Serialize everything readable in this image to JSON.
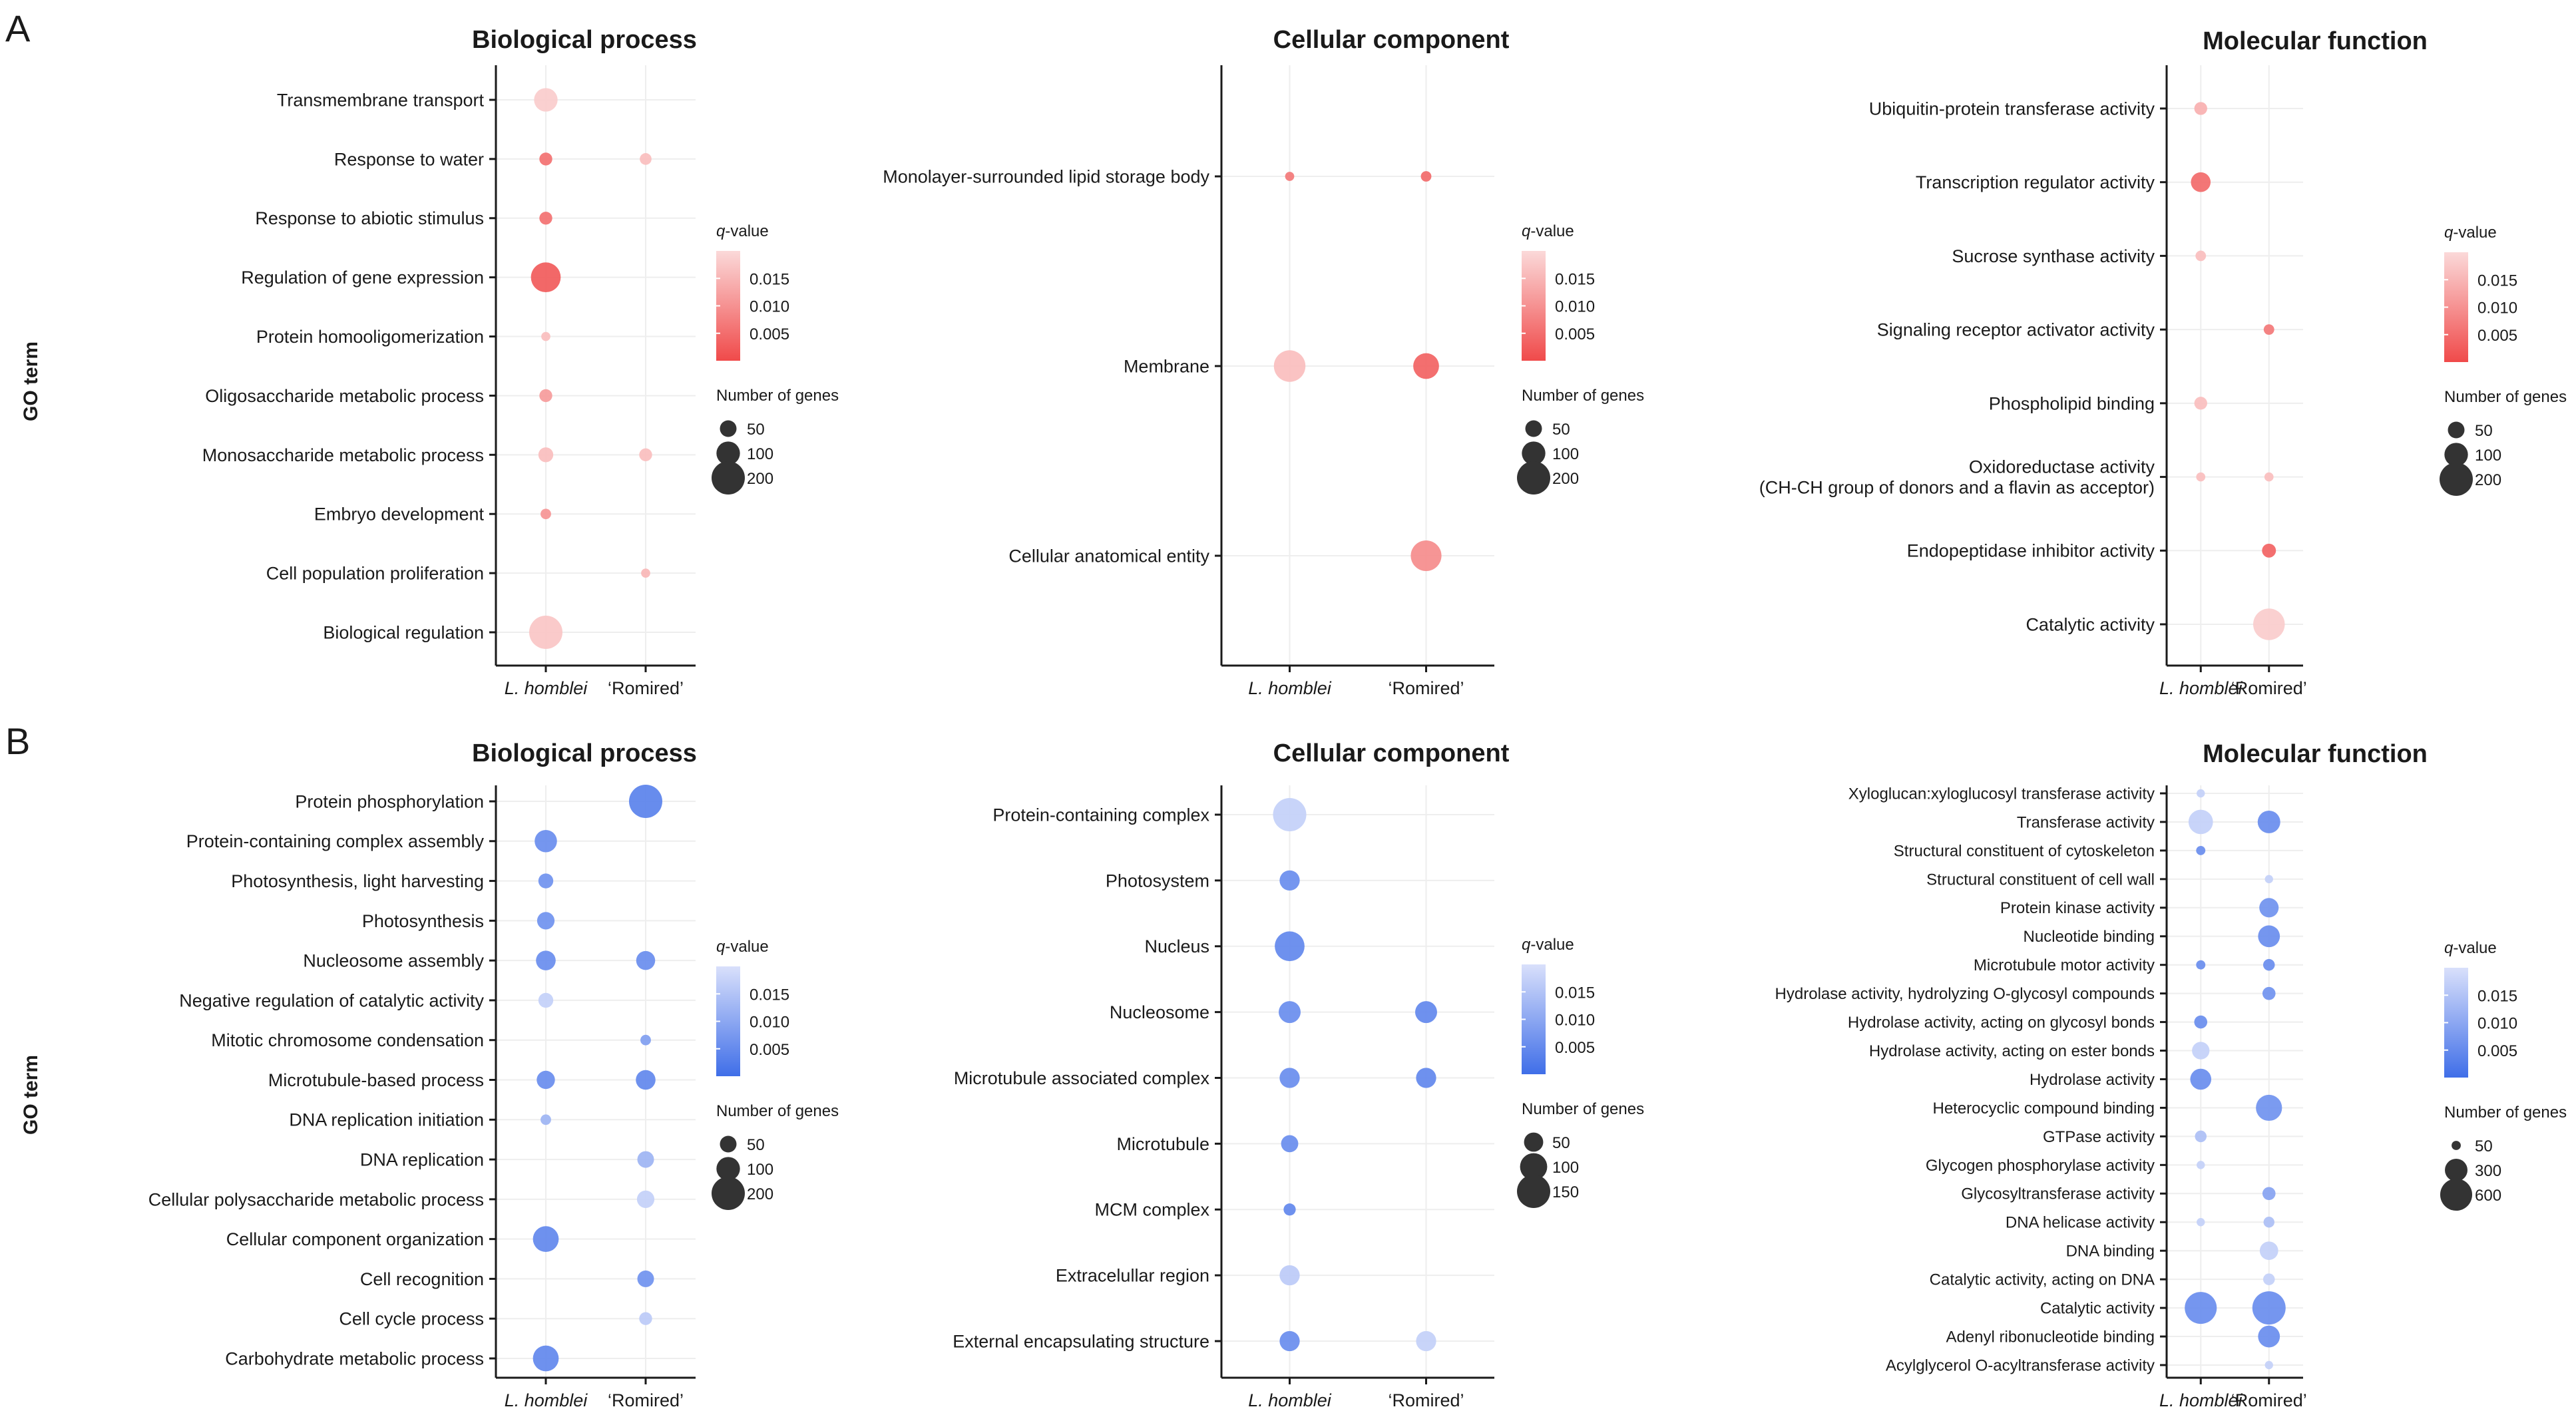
{
  "figure": {
    "y_axis_label": "GO term",
    "legend_q_label": "q-value",
    "legend_q_ticks": [
      "0.015",
      "0.010",
      "0.005"
    ],
    "legend_size_title": "Number of genes",
    "x_categories": [
      "L. homblei",
      "'Romired'"
    ],
    "colors": {
      "A_strong": "#f04a4a",
      "A_weak": "#fbd9d9",
      "B_strong": "#3f6ee8",
      "B_weak": "#d9e0fb",
      "axis": "#1a1a1a",
      "grid": "#eeeeee"
    }
  },
  "chart_data": [
    {
      "panel": "A",
      "type": "scatter",
      "title": "Biological process",
      "q_range": [
        0,
        0.02
      ],
      "size_legend": [
        50,
        100,
        200
      ],
      "terms": [
        "Transmembrane transport",
        "Response to water",
        "Response to abiotic stimulus",
        "Regulation of gene expression",
        "Protein homooligomerization",
        "Oligosaccharide metabolic process",
        "Monosaccharide metabolic process",
        "Embryo development",
        "Cell population proliferation",
        "Biological regulation"
      ],
      "points": [
        {
          "term": 0,
          "x": 0,
          "genes": 100,
          "q": 0.018
        },
        {
          "term": 1,
          "x": 0,
          "genes": 30,
          "q": 0.005
        },
        {
          "term": 1,
          "x": 1,
          "genes": 25,
          "q": 0.016
        },
        {
          "term": 2,
          "x": 0,
          "genes": 30,
          "q": 0.005
        },
        {
          "term": 3,
          "x": 0,
          "genes": 160,
          "q": 0.002
        },
        {
          "term": 4,
          "x": 0,
          "genes": 15,
          "q": 0.016
        },
        {
          "term": 5,
          "x": 0,
          "genes": 30,
          "q": 0.011
        },
        {
          "term": 6,
          "x": 0,
          "genes": 40,
          "q": 0.016
        },
        {
          "term": 6,
          "x": 1,
          "genes": 30,
          "q": 0.016
        },
        {
          "term": 7,
          "x": 0,
          "genes": 20,
          "q": 0.01
        },
        {
          "term": 8,
          "x": 1,
          "genes": 15,
          "q": 0.015
        },
        {
          "term": 9,
          "x": 0,
          "genes": 200,
          "q": 0.017
        }
      ]
    },
    {
      "panel": "A",
      "type": "scatter",
      "title": "Cellular component",
      "q_range": [
        0,
        0.02
      ],
      "size_legend": [
        50,
        100,
        200
      ],
      "terms": [
        "Monolayer-surrounded lipid storage body",
        "Membrane",
        "Cellular anatomical entity"
      ],
      "points": [
        {
          "term": 0,
          "x": 0,
          "genes": 15,
          "q": 0.006
        },
        {
          "term": 0,
          "x": 1,
          "genes": 20,
          "q": 0.004
        },
        {
          "term": 1,
          "x": 0,
          "genes": 180,
          "q": 0.016
        },
        {
          "term": 1,
          "x": 1,
          "genes": 120,
          "q": 0.003
        },
        {
          "term": 2,
          "x": 1,
          "genes": 170,
          "q": 0.009
        }
      ]
    },
    {
      "panel": "A",
      "type": "scatter",
      "title": "Molecular function",
      "q_range": [
        0,
        0.02
      ],
      "size_legend": [
        50,
        100,
        200
      ],
      "terms": [
        "Ubiquitin-protein transferase activity",
        "Transcription regulator activity",
        "Sucrose synthase activity",
        "Signaling receptor activator activity",
        "Phospholipid binding",
        "Oxidoreductase activity\n(CH-CH group of donors and a flavin as acceptor)",
        "Endopeptidase inhibitor activity",
        "Catalytic activity"
      ],
      "points": [
        {
          "term": 0,
          "x": 0,
          "genes": 30,
          "q": 0.014
        },
        {
          "term": 1,
          "x": 0,
          "genes": 70,
          "q": 0.004
        },
        {
          "term": 2,
          "x": 0,
          "genes": 20,
          "q": 0.016
        },
        {
          "term": 3,
          "x": 1,
          "genes": 20,
          "q": 0.006
        },
        {
          "term": 4,
          "x": 0,
          "genes": 30,
          "q": 0.016
        },
        {
          "term": 5,
          "x": 0,
          "genes": 15,
          "q": 0.016
        },
        {
          "term": 5,
          "x": 1,
          "genes": 15,
          "q": 0.016
        },
        {
          "term": 6,
          "x": 1,
          "genes": 35,
          "q": 0.003
        },
        {
          "term": 7,
          "x": 1,
          "genes": 180,
          "q": 0.018
        }
      ]
    },
    {
      "panel": "B",
      "type": "scatter",
      "title": "Biological process",
      "q_range": [
        0,
        0.02
      ],
      "size_legend": [
        50,
        100,
        200
      ],
      "terms": [
        "Protein phosphorylation",
        "Protein-containing complex assembly",
        "Photosynthesis, light harvesting",
        "Photosynthesis",
        "Nucleosome assembly",
        "Negative regulation of catalytic activity",
        "Mitotic chromosome condensation",
        "Microtubule-based process",
        "DNA replication initiation",
        "DNA replication",
        "Cellular polysaccharide metabolic process",
        "Cellular component organization",
        "Cell recognition",
        "Cell cycle process",
        "Carbohydrate metabolic process"
      ],
      "points": [
        {
          "term": 0,
          "x": 1,
          "genes": 200,
          "q": 0.003
        },
        {
          "term": 1,
          "x": 0,
          "genes": 90,
          "q": 0.005
        },
        {
          "term": 2,
          "x": 0,
          "genes": 40,
          "q": 0.006
        },
        {
          "term": 3,
          "x": 0,
          "genes": 55,
          "q": 0.006
        },
        {
          "term": 4,
          "x": 0,
          "genes": 70,
          "q": 0.005
        },
        {
          "term": 4,
          "x": 1,
          "genes": 65,
          "q": 0.005
        },
        {
          "term": 5,
          "x": 0,
          "genes": 40,
          "q": 0.017
        },
        {
          "term": 6,
          "x": 1,
          "genes": 20,
          "q": 0.008
        },
        {
          "term": 7,
          "x": 0,
          "genes": 60,
          "q": 0.005
        },
        {
          "term": 7,
          "x": 1,
          "genes": 70,
          "q": 0.004
        },
        {
          "term": 8,
          "x": 0,
          "genes": 20,
          "q": 0.012
        },
        {
          "term": 9,
          "x": 1,
          "genes": 50,
          "q": 0.012
        },
        {
          "term": 10,
          "x": 1,
          "genes": 55,
          "q": 0.017
        },
        {
          "term": 11,
          "x": 0,
          "genes": 120,
          "q": 0.004
        },
        {
          "term": 12,
          "x": 1,
          "genes": 50,
          "q": 0.006
        },
        {
          "term": 13,
          "x": 1,
          "genes": 30,
          "q": 0.016
        },
        {
          "term": 14,
          "x": 0,
          "genes": 120,
          "q": 0.004
        }
      ]
    },
    {
      "panel": "B",
      "type": "scatter",
      "title": "Cellular component",
      "q_range": [
        0,
        0.02
      ],
      "size_legend": [
        50,
        100,
        150
      ],
      "terms": [
        "Protein-containing complex",
        "Photosystem",
        "Nucleus",
        "Nucleosome",
        "Microtubule associated complex",
        "Microtubule",
        "MCM complex",
        "Extracelullar region",
        "External encapsulating structure"
      ],
      "points": [
        {
          "term": 0,
          "x": 0,
          "genes": 150,
          "q": 0.017
        },
        {
          "term": 1,
          "x": 0,
          "genes": 55,
          "q": 0.005
        },
        {
          "term": 2,
          "x": 0,
          "genes": 120,
          "q": 0.004
        },
        {
          "term": 3,
          "x": 0,
          "genes": 65,
          "q": 0.005
        },
        {
          "term": 3,
          "x": 1,
          "genes": 65,
          "q": 0.004
        },
        {
          "term": 4,
          "x": 0,
          "genes": 55,
          "q": 0.005
        },
        {
          "term": 4,
          "x": 1,
          "genes": 55,
          "q": 0.004
        },
        {
          "term": 5,
          "x": 0,
          "genes": 40,
          "q": 0.005
        },
        {
          "term": 6,
          "x": 0,
          "genes": 20,
          "q": 0.004
        },
        {
          "term": 7,
          "x": 0,
          "genes": 55,
          "q": 0.016
        },
        {
          "term": 8,
          "x": 0,
          "genes": 55,
          "q": 0.005
        },
        {
          "term": 8,
          "x": 1,
          "genes": 55,
          "q": 0.017
        }
      ]
    },
    {
      "panel": "B",
      "type": "scatter",
      "title": "Molecular function",
      "q_range": [
        0,
        0.02
      ],
      "size_legend": [
        50,
        300,
        600
      ],
      "terms": [
        "Xyloglucan:xyloglucosyl transferase activity",
        "Transferase activity",
        "Structural constituent of cytoskeleton",
        "Structural constituent of cell wall",
        "Protein kinase activity",
        "Nucleotide binding",
        "Microtubule motor activity",
        "Hydrolase activity, hydrolyzing O-glycosyl compounds",
        "Hydrolase activity, acting on glycosyl bonds",
        "Hydrolase activity, acting on ester bonds",
        "Hydrolase activity",
        "Heterocyclic compound binding",
        "GTPase activity",
        "Glycogen phosphorylase activity",
        "Glycosyltransferase activity",
        "DNA helicase activity",
        "DNA binding",
        "Catalytic activity, acting on DNA",
        "Catalytic activity",
        "Adenyl ribonucleotide binding",
        "Acylglycerol O-acyltransferase activity"
      ],
      "points": [
        {
          "term": 0,
          "x": 0,
          "genes": 40,
          "q": 0.017
        },
        {
          "term": 1,
          "x": 0,
          "genes": 350,
          "q": 0.017
        },
        {
          "term": 1,
          "x": 1,
          "genes": 300,
          "q": 0.005
        },
        {
          "term": 2,
          "x": 0,
          "genes": 50,
          "q": 0.005
        },
        {
          "term": 3,
          "x": 1,
          "genes": 40,
          "q": 0.017
        },
        {
          "term": 4,
          "x": 1,
          "genes": 220,
          "q": 0.006
        },
        {
          "term": 5,
          "x": 1,
          "genes": 280,
          "q": 0.005
        },
        {
          "term": 6,
          "x": 0,
          "genes": 50,
          "q": 0.005
        },
        {
          "term": 6,
          "x": 1,
          "genes": 80,
          "q": 0.005
        },
        {
          "term": 7,
          "x": 1,
          "genes": 100,
          "q": 0.006
        },
        {
          "term": 8,
          "x": 0,
          "genes": 100,
          "q": 0.005
        },
        {
          "term": 9,
          "x": 0,
          "genes": 180,
          "q": 0.017
        },
        {
          "term": 10,
          "x": 0,
          "genes": 260,
          "q": 0.005
        },
        {
          "term": 11,
          "x": 1,
          "genes": 400,
          "q": 0.006
        },
        {
          "term": 12,
          "x": 0,
          "genes": 80,
          "q": 0.014
        },
        {
          "term": 13,
          "x": 0,
          "genes": 40,
          "q": 0.017
        },
        {
          "term": 14,
          "x": 1,
          "genes": 100,
          "q": 0.009
        },
        {
          "term": 15,
          "x": 0,
          "genes": 40,
          "q": 0.017
        },
        {
          "term": 15,
          "x": 1,
          "genes": 70,
          "q": 0.014
        },
        {
          "term": 16,
          "x": 1,
          "genes": 200,
          "q": 0.017
        },
        {
          "term": 17,
          "x": 1,
          "genes": 80,
          "q": 0.017
        },
        {
          "term": 18,
          "x": 0,
          "genes": 600,
          "q": 0.005
        },
        {
          "term": 18,
          "x": 1,
          "genes": 650,
          "q": 0.005
        },
        {
          "term": 19,
          "x": 1,
          "genes": 280,
          "q": 0.005
        },
        {
          "term": 20,
          "x": 1,
          "genes": 40,
          "q": 0.017
        }
      ]
    }
  ]
}
